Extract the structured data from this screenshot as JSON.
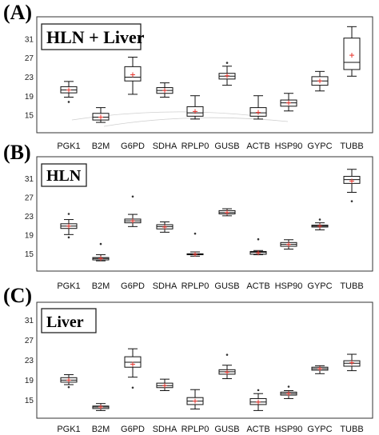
{
  "chart_data": [
    {
      "type": "box",
      "panel_label": "(A)",
      "title": "HLN + Liver",
      "categories": [
        "PGK1",
        "B2M",
        "G6PD",
        "SDHA",
        "RPLP0",
        "GUSB",
        "ACTB",
        "HSP90",
        "GYPC",
        "TUBB"
      ],
      "ylim": [
        12,
        35
      ],
      "yticks": [
        15,
        19,
        23,
        27,
        31
      ],
      "boxes": [
        {
          "min": 18.8,
          "q1": 19.7,
          "median": 20.3,
          "q3": 21.0,
          "max": 22.1,
          "mean": 20.3,
          "outliers": [
            17.8
          ]
        },
        {
          "min": 13.5,
          "q1": 14.0,
          "median": 14.6,
          "q3": 15.4,
          "max": 16.6,
          "mean": 14.6,
          "outliers": []
        },
        {
          "min": 19.4,
          "q1": 22.2,
          "median": 23.0,
          "q3": 25.2,
          "max": 27.2,
          "mean": 23.5,
          "outliers": []
        },
        {
          "min": 18.8,
          "q1": 19.6,
          "median": 20.2,
          "q3": 20.8,
          "max": 21.8,
          "mean": 20.2,
          "outliers": []
        },
        {
          "min": 14.2,
          "q1": 14.8,
          "median": 15.5,
          "q3": 16.8,
          "max": 19.1,
          "mean": 15.8,
          "outliers": []
        },
        {
          "min": 21.3,
          "q1": 22.6,
          "median": 23.2,
          "q3": 23.8,
          "max": 25.3,
          "mean": 23.3,
          "outliers": [
            26.0
          ]
        },
        {
          "min": 14.2,
          "q1": 14.8,
          "median": 15.5,
          "q3": 16.6,
          "max": 19.1,
          "mean": 15.6,
          "outliers": []
        },
        {
          "min": 15.9,
          "q1": 16.9,
          "median": 17.6,
          "q3": 18.2,
          "max": 19.6,
          "mean": 17.6,
          "outliers": []
        },
        {
          "min": 20.1,
          "q1": 21.3,
          "median": 22.2,
          "q3": 23.1,
          "max": 24.2,
          "mean": 22.2,
          "outliers": []
        },
        {
          "min": 23.2,
          "q1": 24.6,
          "median": 26.1,
          "q3": 31.2,
          "max": 33.6,
          "mean": 27.6,
          "outliers": []
        }
      ]
    },
    {
      "type": "box",
      "panel_label": "(B)",
      "title": "HLN",
      "categories": [
        "PGK1",
        "B2M",
        "G6PD",
        "SDHA",
        "RPLP0",
        "GUSB",
        "ACTB",
        "HSP90",
        "GYPC",
        "TUBB"
      ],
      "ylim": [
        12,
        35
      ],
      "yticks": [
        15,
        19,
        23,
        27,
        31
      ],
      "boxes": [
        {
          "min": 19.1,
          "q1": 20.4,
          "median": 20.9,
          "q3": 21.4,
          "max": 22.3,
          "mean": 20.9,
          "outliers": [
            23.5,
            18.5
          ]
        },
        {
          "min": 13.5,
          "q1": 13.7,
          "median": 14.0,
          "q3": 14.2,
          "max": 14.8,
          "mean": 14.0,
          "outliers": [
            17.1
          ]
        },
        {
          "min": 20.8,
          "q1": 21.6,
          "median": 22.0,
          "q3": 22.4,
          "max": 23.4,
          "mean": 22.0,
          "outliers": [
            27.2
          ]
        },
        {
          "min": 19.6,
          "q1": 20.3,
          "median": 20.8,
          "q3": 21.2,
          "max": 21.8,
          "mean": 20.7,
          "outliers": []
        },
        {
          "min": 14.5,
          "q1": 14.8,
          "median": 14.9,
          "q3": 15.0,
          "max": 15.4,
          "mean": 14.9,
          "outliers": [
            19.3
          ]
        },
        {
          "min": 23.1,
          "q1": 23.5,
          "median": 23.8,
          "q3": 24.2,
          "max": 24.6,
          "mean": 23.8,
          "outliers": []
        },
        {
          "min": 14.8,
          "q1": 14.9,
          "median": 15.3,
          "q3": 15.5,
          "max": 15.7,
          "mean": 15.2,
          "outliers": [
            18.1
          ]
        },
        {
          "min": 16.0,
          "q1": 16.6,
          "median": 17.0,
          "q3": 17.4,
          "max": 18.0,
          "mean": 17.0,
          "outliers": []
        },
        {
          "min": 20.1,
          "q1": 20.7,
          "median": 20.9,
          "q3": 21.1,
          "max": 21.6,
          "mean": 20.9,
          "outliers": [
            22.3
          ]
        },
        {
          "min": 28.1,
          "q1": 30.0,
          "median": 30.8,
          "q3": 31.5,
          "max": 33.0,
          "mean": 30.5,
          "outliers": [
            26.2
          ]
        }
      ]
    },
    {
      "type": "box",
      "panel_label": "(C)",
      "title": "Liver",
      "categories": [
        "PGK1",
        "B2M",
        "G6PD",
        "SDHA",
        "RPLP0",
        "GUSB",
        "ACTB",
        "HSP90",
        "GYPC",
        "TUBB"
      ],
      "ylim": [
        12,
        34
      ],
      "yticks": [
        15,
        19,
        23,
        27,
        31
      ],
      "boxes": [
        {
          "min": 18.1,
          "q1": 18.6,
          "median": 19.0,
          "q3": 19.5,
          "max": 20.1,
          "mean": 19.0,
          "outliers": [
            17.6
          ]
        },
        {
          "min": 12.9,
          "q1": 13.3,
          "median": 13.6,
          "q3": 13.8,
          "max": 14.3,
          "mean": 13.6,
          "outliers": []
        },
        {
          "min": 19.6,
          "q1": 21.6,
          "median": 22.6,
          "q3": 23.7,
          "max": 25.3,
          "mean": 22.2,
          "outliers": [
            17.5
          ]
        },
        {
          "min": 16.9,
          "q1": 17.5,
          "median": 17.9,
          "q3": 18.4,
          "max": 19.2,
          "mean": 17.9,
          "outliers": []
        },
        {
          "min": 13.2,
          "q1": 14.1,
          "median": 14.8,
          "q3": 15.5,
          "max": 17.1,
          "mean": 14.8,
          "outliers": []
        },
        {
          "min": 19.3,
          "q1": 20.2,
          "median": 20.7,
          "q3": 21.1,
          "max": 22.0,
          "mean": 20.6,
          "outliers": [
            24.1
          ]
        },
        {
          "min": 12.9,
          "q1": 14.1,
          "median": 14.6,
          "q3": 15.3,
          "max": 16.3,
          "mean": 14.6,
          "outliers": [
            17.0
          ]
        },
        {
          "min": 15.3,
          "q1": 16.0,
          "median": 16.3,
          "q3": 16.6,
          "max": 16.9,
          "mean": 16.3,
          "outliers": [
            17.7
          ]
        },
        {
          "min": 20.3,
          "q1": 21.0,
          "median": 21.3,
          "q3": 21.6,
          "max": 21.9,
          "mean": 21.3,
          "outliers": []
        },
        {
          "min": 20.9,
          "q1": 21.8,
          "median": 22.4,
          "q3": 22.9,
          "max": 24.2,
          "mean": 22.5,
          "outliers": []
        }
      ]
    }
  ]
}
